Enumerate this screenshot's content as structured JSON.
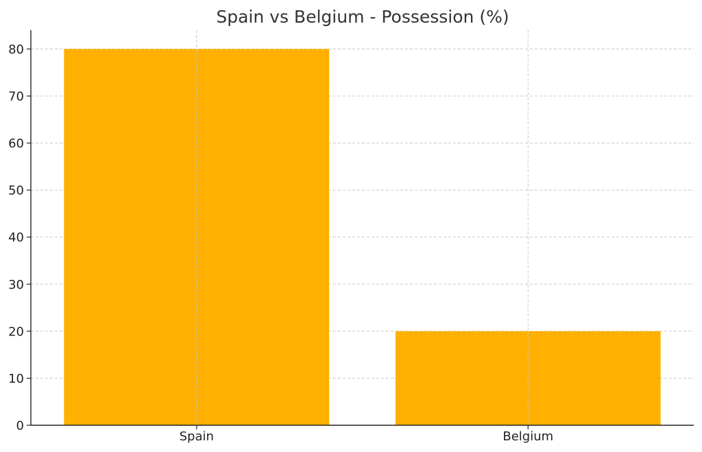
{
  "chart_data": {
    "type": "bar",
    "title": "Spain vs Belgium - Possession (%)",
    "xlabel": "",
    "ylabel": "",
    "categories": [
      "Spain",
      "Belgium"
    ],
    "values": [
      80,
      20
    ],
    "ylim": [
      0,
      84
    ],
    "yticks": [
      0,
      10,
      20,
      30,
      40,
      50,
      60,
      70,
      80
    ],
    "grid": true,
    "bar_color": "#FFB000"
  }
}
